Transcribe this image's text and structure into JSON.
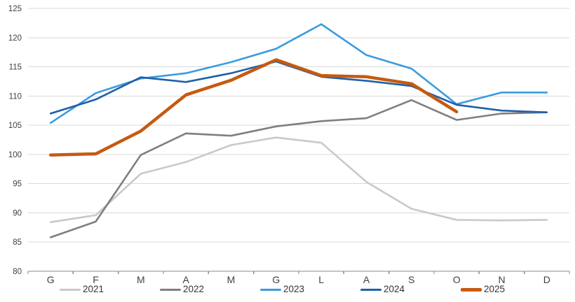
{
  "chart_data": {
    "type": "line",
    "title": "",
    "x_labels": [
      "G",
      "F",
      "M",
      "A",
      "M",
      "G",
      "L",
      "A",
      "S",
      "O",
      "N",
      "D"
    ],
    "y_ticks": [
      80,
      85,
      90,
      95,
      100,
      105,
      110,
      115,
      120,
      125
    ],
    "ylim": [
      80,
      125
    ],
    "grid": true,
    "legend_position": "bottom",
    "series": [
      {
        "name": "2021",
        "color": "#C9C9C9",
        "width": 2.6,
        "values": [
          88.4,
          89.6,
          96.7,
          98.7,
          101.6,
          102.9,
          102.0,
          95.3,
          90.7,
          88.8,
          88.7,
          88.8
        ]
      },
      {
        "name": "2022",
        "color": "#7F7F7F",
        "width": 2.6,
        "values": [
          85.8,
          88.5,
          99.9,
          103.6,
          103.2,
          104.8,
          105.7,
          106.2,
          109.3,
          105.9,
          107.0,
          107.2
        ]
      },
      {
        "name": "2023",
        "color": "#3A9BDF",
        "width": 2.6,
        "values": [
          105.4,
          110.5,
          113.0,
          113.9,
          115.8,
          118.1,
          122.3,
          117.0,
          114.7,
          108.6,
          110.6,
          110.6
        ]
      },
      {
        "name": "2024",
        "color": "#1F60A9",
        "width": 2.6,
        "values": [
          107.0,
          109.4,
          113.2,
          112.4,
          113.9,
          115.9,
          113.3,
          112.6,
          111.7,
          108.5,
          107.5,
          107.2
        ]
      },
      {
        "name": "2025",
        "color": "#C55A11",
        "width": 4.5,
        "values": [
          99.9,
          100.1,
          104.0,
          110.2,
          112.7,
          116.2,
          113.5,
          113.3,
          112.1,
          107.3,
          null,
          null
        ]
      }
    ],
    "style": {
      "grid_color": "#D9D9D9",
      "axis_color": "#898989",
      "label_color": "#404040",
      "background": "#FFFFFF"
    }
  }
}
